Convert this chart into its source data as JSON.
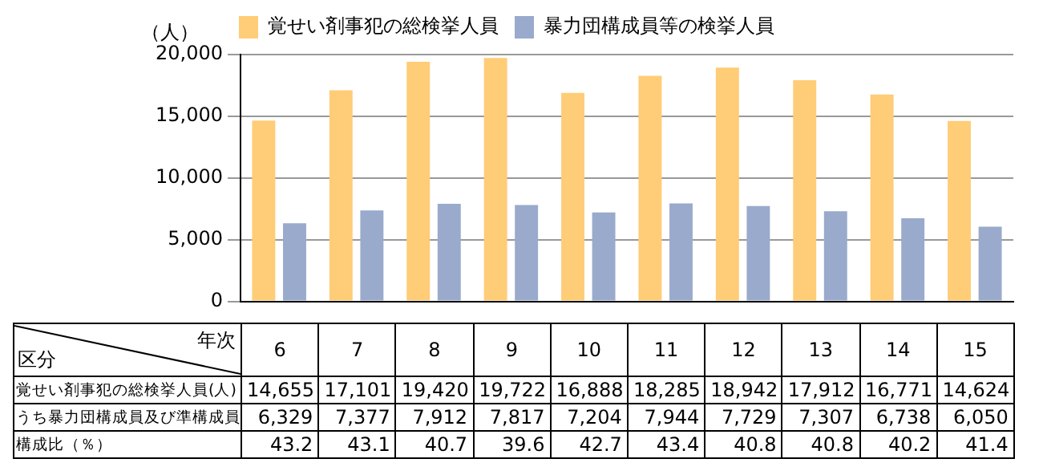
{
  "chart_data": {
    "type": "bar",
    "ylabel": "（人）",
    "categories": [
      "6",
      "7",
      "8",
      "9",
      "10",
      "11",
      "12",
      "13",
      "14",
      "15"
    ],
    "series": [
      {
        "name": "覚せい剤事犯の総検挙人員",
        "color": "#ffcc77",
        "values": [
          14655,
          17101,
          19420,
          19722,
          16888,
          18285,
          18942,
          17912,
          16771,
          14624
        ],
        "value_labels": [
          "14,655",
          "17,101",
          "19,420",
          "19,722",
          "16,888",
          "18,285",
          "18,942",
          "17,912",
          "16,771",
          "14,624"
        ]
      },
      {
        "name": "暴力団構成員等の検挙人員",
        "color": "#99aacc",
        "values": [
          6329,
          7377,
          7912,
          7817,
          7204,
          7944,
          7729,
          7307,
          6738,
          6050
        ],
        "value_labels": [
          "6,329",
          "7,377",
          "7,912",
          "7,817",
          "7,204",
          "7,944",
          "7,729",
          "7,307",
          "6,738",
          "6,050"
        ]
      }
    ],
    "ylim": [
      0,
      20000
    ],
    "yticks": [
      {
        "value": 0,
        "label": "0"
      },
      {
        "value": 5000,
        "label": "5,000"
      },
      {
        "value": 10000,
        "label": "10,000"
      },
      {
        "value": 15000,
        "label": "15,000"
      },
      {
        "value": 20000,
        "label": "20,000"
      }
    ],
    "grid": "y",
    "legend": "top",
    "annotations": [
      "年次",
      "区分",
      "覚せい剤事犯の総検挙人員(人)",
      "うち暴力団構成員及び準構成員",
      "構成比（％）",
      "43.2",
      "43.1",
      "40.7",
      "39.6",
      "42.7",
      "43.4",
      "40.8",
      "40.8",
      "40.2",
      "41.4"
    ]
  }
}
